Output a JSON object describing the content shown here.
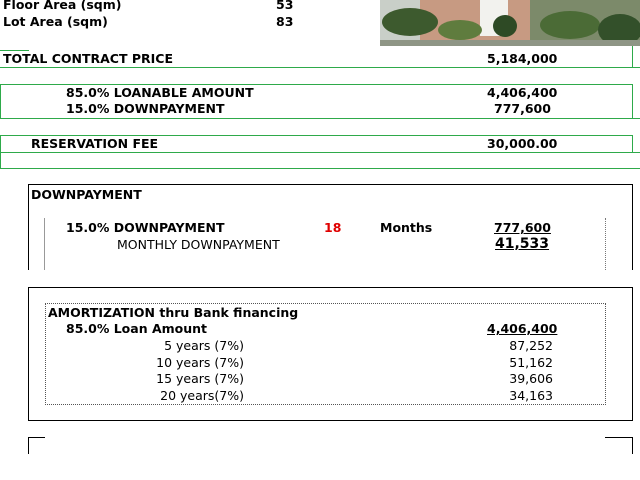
{
  "header": {
    "floor_area": {
      "label": "Floor Area (sqm)",
      "value": "53"
    },
    "lot_area": {
      "label": "Lot Area (sqm)",
      "value": "83"
    }
  },
  "pricing": {
    "total_contract_price": {
      "label": "TOTAL CONTRACT PRICE",
      "value": "5,184,000"
    },
    "loanable_amount": {
      "label": "85.0% LOANABLE AMOUNT",
      "value": "4,406,400"
    },
    "downpayment": {
      "label": "15.0% DOWNPAYMENT",
      "value": "777,600"
    },
    "reservation_fee": {
      "label": "RESERVATION FEE",
      "value": "30,000.00"
    }
  },
  "downpayment": {
    "title": "DOWNPAYMENT",
    "label": "15.0% DOWNPAYMENT",
    "months": "18",
    "months_label": "Months",
    "value": "777,600",
    "monthly_label": "MONTHLY DOWNPAYMENT",
    "monthly_value": "41,533"
  },
  "amortization": {
    "title": "AMORTIZATION thru Bank financing",
    "loan_label": "85.0% Loan Amount",
    "loan_value": "4,406,400",
    "rows": [
      [
        "5 years (7%)",
        "87,252"
      ],
      [
        "10 years (7%)",
        "51,162"
      ],
      [
        "15 years (7%)",
        "39,606"
      ],
      [
        "20 years(7%)",
        "34,163"
      ]
    ]
  }
}
